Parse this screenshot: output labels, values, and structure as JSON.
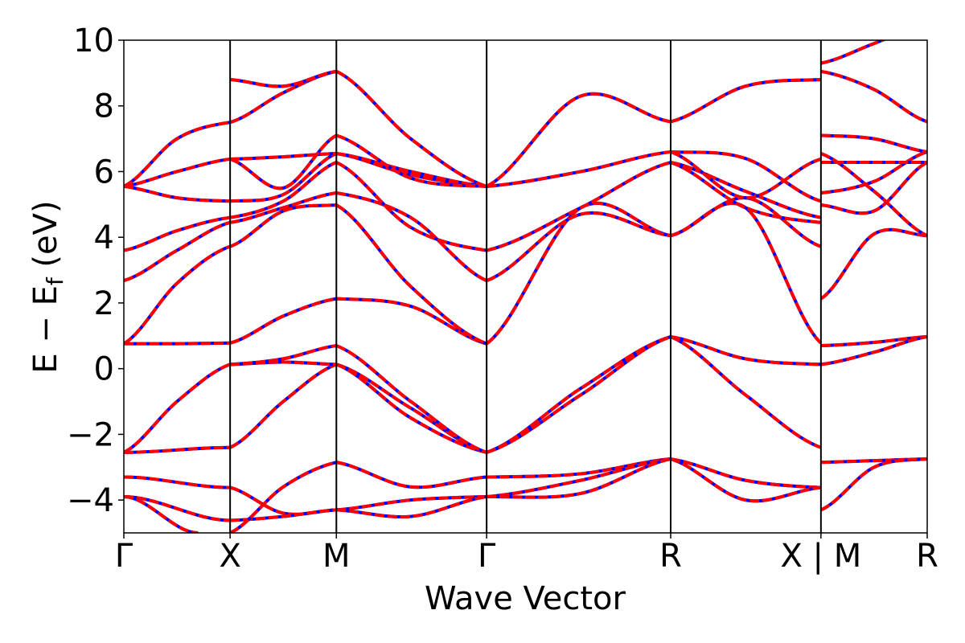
{
  "chart_data": {
    "type": "line",
    "title": "",
    "xlabel": "Wave Vector",
    "ylabel": "E − E_f (eV)",
    "ylabel_parts": {
      "main": "E  −  E",
      "sub": "f",
      "unit": " (eV)"
    },
    "ylim": [
      -5,
      10
    ],
    "yticks": [
      -4,
      -2,
      0,
      2,
      4,
      6,
      8,
      10
    ],
    "ytick_labels": [
      "−4",
      "−2",
      "0",
      "2",
      "4",
      "6",
      "8",
      "10"
    ],
    "grid": false,
    "legend": "none",
    "high_symmetry_points": [
      {
        "label": "Γ",
        "x": 0.0
      },
      {
        "label": "X",
        "x": 1.0
      },
      {
        "label": "M",
        "x": 2.0
      },
      {
        "label": "Γ",
        "x": 3.414
      },
      {
        "label": "R",
        "x": 5.146
      },
      {
        "label": "X | M",
        "x": 6.56
      },
      {
        "label": "R",
        "x": 7.56
      }
    ],
    "xlim": [
      0,
      7.56
    ],
    "colors": {
      "band_a": "#0000ff",
      "band_b": "#ff0000",
      "frame": "#000000"
    },
    "series": [
      {
        "x": [
          0,
          1
        ],
        "values": [
          -2.55,
          -2.4
        ]
      },
      {
        "x": [
          0,
          0.5,
          1
        ],
        "values": [
          -2.55,
          -1.0,
          0.13
        ]
      },
      {
        "x": [
          0,
          0.5,
          1
        ],
        "values": [
          0.76,
          0.76,
          0.78
        ]
      },
      {
        "x": [
          0,
          0.5,
          1
        ],
        "values": [
          0.76,
          2.6,
          3.72
        ]
      },
      {
        "x": [
          0,
          0.5,
          1
        ],
        "values": [
          2.68,
          3.6,
          4.45
        ]
      },
      {
        "x": [
          0,
          0.5,
          1
        ],
        "values": [
          3.6,
          4.2,
          4.6
        ]
      },
      {
        "x": [
          0,
          0.5,
          1
        ],
        "values": [
          5.55,
          5.2,
          5.1
        ]
      },
      {
        "x": [
          0,
          0.5,
          1
        ],
        "values": [
          5.55,
          6.0,
          6.38
        ]
      },
      {
        "x": [
          0,
          0.5,
          1
        ],
        "values": [
          5.55,
          7.0,
          7.5
        ]
      },
      {
        "x": [
          0,
          1
        ],
        "values": [
          -3.3,
          -3.62
        ]
      },
      {
        "x": [
          0,
          1
        ],
        "values": [
          -3.9,
          -4.62
        ]
      },
      {
        "x": [
          0,
          0.7
        ],
        "values": [
          -3.9,
          -5.0
        ]
      },
      {
        "x": [
          1,
          1.5,
          2
        ],
        "values": [
          -2.4,
          -1.0,
          0.13
        ]
      },
      {
        "x": [
          1,
          1.5,
          2
        ],
        "values": [
          0.13,
          0.2,
          0.13
        ]
      },
      {
        "x": [
          1,
          1.5,
          2
        ],
        "values": [
          0.13,
          0.3,
          0.7
        ]
      },
      {
        "x": [
          1,
          1.5,
          2
        ],
        "values": [
          0.78,
          1.6,
          2.13
        ]
      },
      {
        "x": [
          1,
          1.5,
          2
        ],
        "values": [
          3.72,
          4.8,
          4.98
        ]
      },
      {
        "x": [
          1,
          1.5,
          2
        ],
        "values": [
          4.45,
          4.9,
          5.35
        ]
      },
      {
        "x": [
          1,
          1.5,
          2
        ],
        "values": [
          4.6,
          5.1,
          6.28
        ]
      },
      {
        "x": [
          1,
          1.5,
          2
        ],
        "values": [
          5.1,
          5.3,
          6.55
        ]
      },
      {
        "x": [
          1,
          1.5,
          2
        ],
        "values": [
          6.38,
          6.45,
          6.55
        ]
      },
      {
        "x": [
          1,
          1.5,
          2
        ],
        "values": [
          6.38,
          5.5,
          7.1
        ]
      },
      {
        "x": [
          1,
          1.5,
          2
        ],
        "values": [
          7.5,
          8.4,
          9.05
        ]
      },
      {
        "x": [
          1,
          1.5,
          2
        ],
        "values": [
          8.8,
          8.6,
          9.05
        ]
      },
      {
        "x": [
          1,
          1.5,
          2
        ],
        "values": [
          -3.62,
          -4.4,
          -4.3
        ]
      },
      {
        "x": [
          1,
          1.5,
          2
        ],
        "values": [
          -4.62,
          -4.5,
          -4.3
        ]
      },
      {
        "x": [
          1,
          1.5,
          2
        ],
        "values": [
          -5.0,
          -3.6,
          -2.85
        ]
      },
      {
        "x": [
          2,
          2.7,
          3.414
        ],
        "values": [
          0.13,
          -1.2,
          -2.55
        ]
      },
      {
        "x": [
          2,
          2.7,
          3.414
        ],
        "values": [
          0.13,
          -1.5,
          -2.55
        ]
      },
      {
        "x": [
          2,
          2.7,
          3.414
        ],
        "values": [
          0.7,
          -1.0,
          -2.55
        ]
      },
      {
        "x": [
          2,
          2.7,
          3.414
        ],
        "values": [
          2.13,
          1.9,
          0.76
        ]
      },
      {
        "x": [
          2,
          2.7,
          3.414
        ],
        "values": [
          4.98,
          2.5,
          0.76
        ]
      },
      {
        "x": [
          2,
          2.7,
          3.414
        ],
        "values": [
          5.35,
          4.6,
          2.68
        ]
      },
      {
        "x": [
          2,
          2.7,
          3.414
        ],
        "values": [
          6.28,
          4.3,
          3.6
        ]
      },
      {
        "x": [
          2,
          2.7,
          3.414
        ],
        "values": [
          6.55,
          5.9,
          5.55
        ]
      },
      {
        "x": [
          2,
          2.7,
          3.414
        ],
        "values": [
          6.55,
          6.0,
          5.55
        ]
      },
      {
        "x": [
          2,
          2.7,
          3.414
        ],
        "values": [
          7.1,
          5.8,
          5.55
        ]
      },
      {
        "x": [
          2,
          2.7,
          3.414
        ],
        "values": [
          9.05,
          7.0,
          5.55
        ]
      },
      {
        "x": [
          2,
          2.7,
          3.414
        ],
        "values": [
          -2.85,
          -3.6,
          -3.3
        ]
      },
      {
        "x": [
          2,
          2.7,
          3.414
        ],
        "values": [
          -4.3,
          -4.0,
          -3.9
        ]
      },
      {
        "x": [
          2,
          2.7,
          3.414
        ],
        "values": [
          -4.3,
          -4.5,
          -3.9
        ]
      },
      {
        "x": [
          3.414,
          4.3,
          5.146
        ],
        "values": [
          -2.55,
          -0.6,
          0.97
        ]
      },
      {
        "x": [
          3.414,
          4.3,
          5.146
        ],
        "values": [
          -2.55,
          -0.8,
          0.97
        ]
      },
      {
        "x": [
          3.414,
          4.3,
          5.146
        ],
        "values": [
          0.76,
          4.9,
          4.05
        ]
      },
      {
        "x": [
          3.414,
          4.3,
          5.146
        ],
        "values": [
          2.68,
          4.7,
          4.05
        ]
      },
      {
        "x": [
          3.414,
          4.3,
          5.146
        ],
        "values": [
          3.6,
          4.9,
          6.28
        ]
      },
      {
        "x": [
          3.414,
          4.3,
          5.146
        ],
        "values": [
          5.55,
          6.0,
          6.6
        ]
      },
      {
        "x": [
          3.414,
          4.3,
          5.146
        ],
        "values": [
          5.55,
          8.3,
          7.52
        ]
      },
      {
        "x": [
          3.414,
          4.3,
          5.146
        ],
        "values": [
          -3.3,
          -3.2,
          -2.75
        ]
      },
      {
        "x": [
          3.414,
          4.3,
          5.146
        ],
        "values": [
          -3.9,
          -3.4,
          -2.75
        ]
      },
      {
        "x": [
          3.414,
          4.3,
          5.146
        ],
        "values": [
          -3.9,
          -3.8,
          -2.75
        ]
      },
      {
        "x": [
          5.146,
          5.85,
          6.56
        ],
        "values": [
          0.97,
          -0.8,
          -2.4
        ]
      },
      {
        "x": [
          5.146,
          5.85,
          6.56
        ],
        "values": [
          0.97,
          0.3,
          0.13
        ]
      },
      {
        "x": [
          5.146,
          5.85,
          6.56
        ],
        "values": [
          4.05,
          4.9,
          0.78
        ]
      },
      {
        "x": [
          5.146,
          5.85,
          6.56
        ],
        "values": [
          4.05,
          5.2,
          3.72
        ]
      },
      {
        "x": [
          5.146,
          5.85,
          6.56
        ],
        "values": [
          6.28,
          4.9,
          4.45
        ]
      },
      {
        "x": [
          5.146,
          5.85,
          6.56
        ],
        "values": [
          6.28,
          5.4,
          4.6
        ]
      },
      {
        "x": [
          5.146,
          5.85,
          6.56
        ],
        "values": [
          6.6,
          5.2,
          6.38
        ]
      },
      {
        "x": [
          5.146,
          5.85,
          6.56
        ],
        "values": [
          6.6,
          6.4,
          5.1
        ]
      },
      {
        "x": [
          5.146,
          5.85,
          6.56
        ],
        "values": [
          7.52,
          8.6,
          8.8
        ]
      },
      {
        "x": [
          5.146,
          5.85,
          6.56
        ],
        "values": [
          -2.75,
          -3.4,
          -3.62
        ]
      },
      {
        "x": [
          5.146,
          5.85,
          6.56
        ],
        "values": [
          -2.75,
          -4.0,
          -3.62
        ]
      },
      {
        "x": [
          6.56,
          7.06,
          7.56
        ],
        "values": [
          -2.85,
          -2.8,
          -2.75
        ]
      },
      {
        "x": [
          6.56,
          7.06,
          7.56
        ],
        "values": [
          -4.3,
          -3.0,
          -2.75
        ]
      },
      {
        "x": [
          6.56,
          7.06,
          7.56
        ],
        "values": [
          0.7,
          0.8,
          0.97
        ]
      },
      {
        "x": [
          6.56,
          7.06,
          7.56
        ],
        "values": [
          0.13,
          0.5,
          0.97
        ]
      },
      {
        "x": [
          6.56,
          7.06,
          7.56
        ],
        "values": [
          2.13,
          4.1,
          4.05
        ]
      },
      {
        "x": [
          6.56,
          7.06,
          7.56
        ],
        "values": [
          4.98,
          4.8,
          6.28
        ]
      },
      {
        "x": [
          6.56,
          7.06,
          7.56
        ],
        "values": [
          5.35,
          5.7,
          6.6
        ]
      },
      {
        "x": [
          6.56,
          7.06,
          7.56
        ],
        "values": [
          6.28,
          6.28,
          6.28
        ]
      },
      {
        "x": [
          6.56,
          7.06,
          7.56
        ],
        "values": [
          6.55,
          5.4,
          4.05
        ]
      },
      {
        "x": [
          6.56,
          7.06,
          7.56
        ],
        "values": [
          7.1,
          7.0,
          6.6
        ]
      },
      {
        "x": [
          6.56,
          7.06,
          7.56
        ],
        "values": [
          9.05,
          8.5,
          7.52
        ]
      },
      {
        "x": [
          6.56,
          7.06,
          7.56
        ],
        "values": [
          9.3,
          9.9,
          10.5
        ]
      }
    ]
  }
}
